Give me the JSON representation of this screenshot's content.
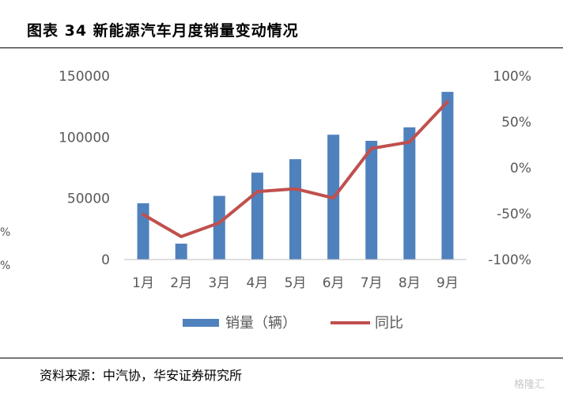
{
  "header": {
    "title": "图表 34 新能源汽车月度销量变动情况"
  },
  "footer": {
    "source": "资料来源：中汽协，华安证券研究所",
    "watermark": "格隆汇"
  },
  "edge_marks": [
    "%",
    "%"
  ],
  "colors": {
    "bar": "#4F81BD",
    "line": "#C0504D",
    "axis_text": "#595959",
    "grid": "#d9d9d9"
  },
  "chart_data": {
    "type": "bar",
    "categories": [
      "1月",
      "2月",
      "3月",
      "4月",
      "5月",
      "6月",
      "7月",
      "8月",
      "9月"
    ],
    "series": [
      {
        "name": "销量（辆）",
        "type": "bar",
        "axis": "left",
        "values": [
          46000,
          13000,
          52000,
          71000,
          82000,
          102000,
          97000,
          108000,
          137000
        ]
      },
      {
        "name": "同比",
        "type": "line",
        "axis": "right",
        "values": [
          -51,
          -75,
          -60,
          -26,
          -23,
          -33,
          21,
          28,
          72
        ]
      }
    ],
    "left_axis": {
      "ylim": [
        0,
        150000
      ],
      "ticks": [
        "0",
        "50000",
        "100000",
        "150000"
      ]
    },
    "right_axis": {
      "ylim": [
        -100,
        100
      ],
      "ticks": [
        "-100%",
        "-50%",
        "0%",
        "50%",
        "100%"
      ]
    },
    "grid": false,
    "legend": "bottom"
  }
}
